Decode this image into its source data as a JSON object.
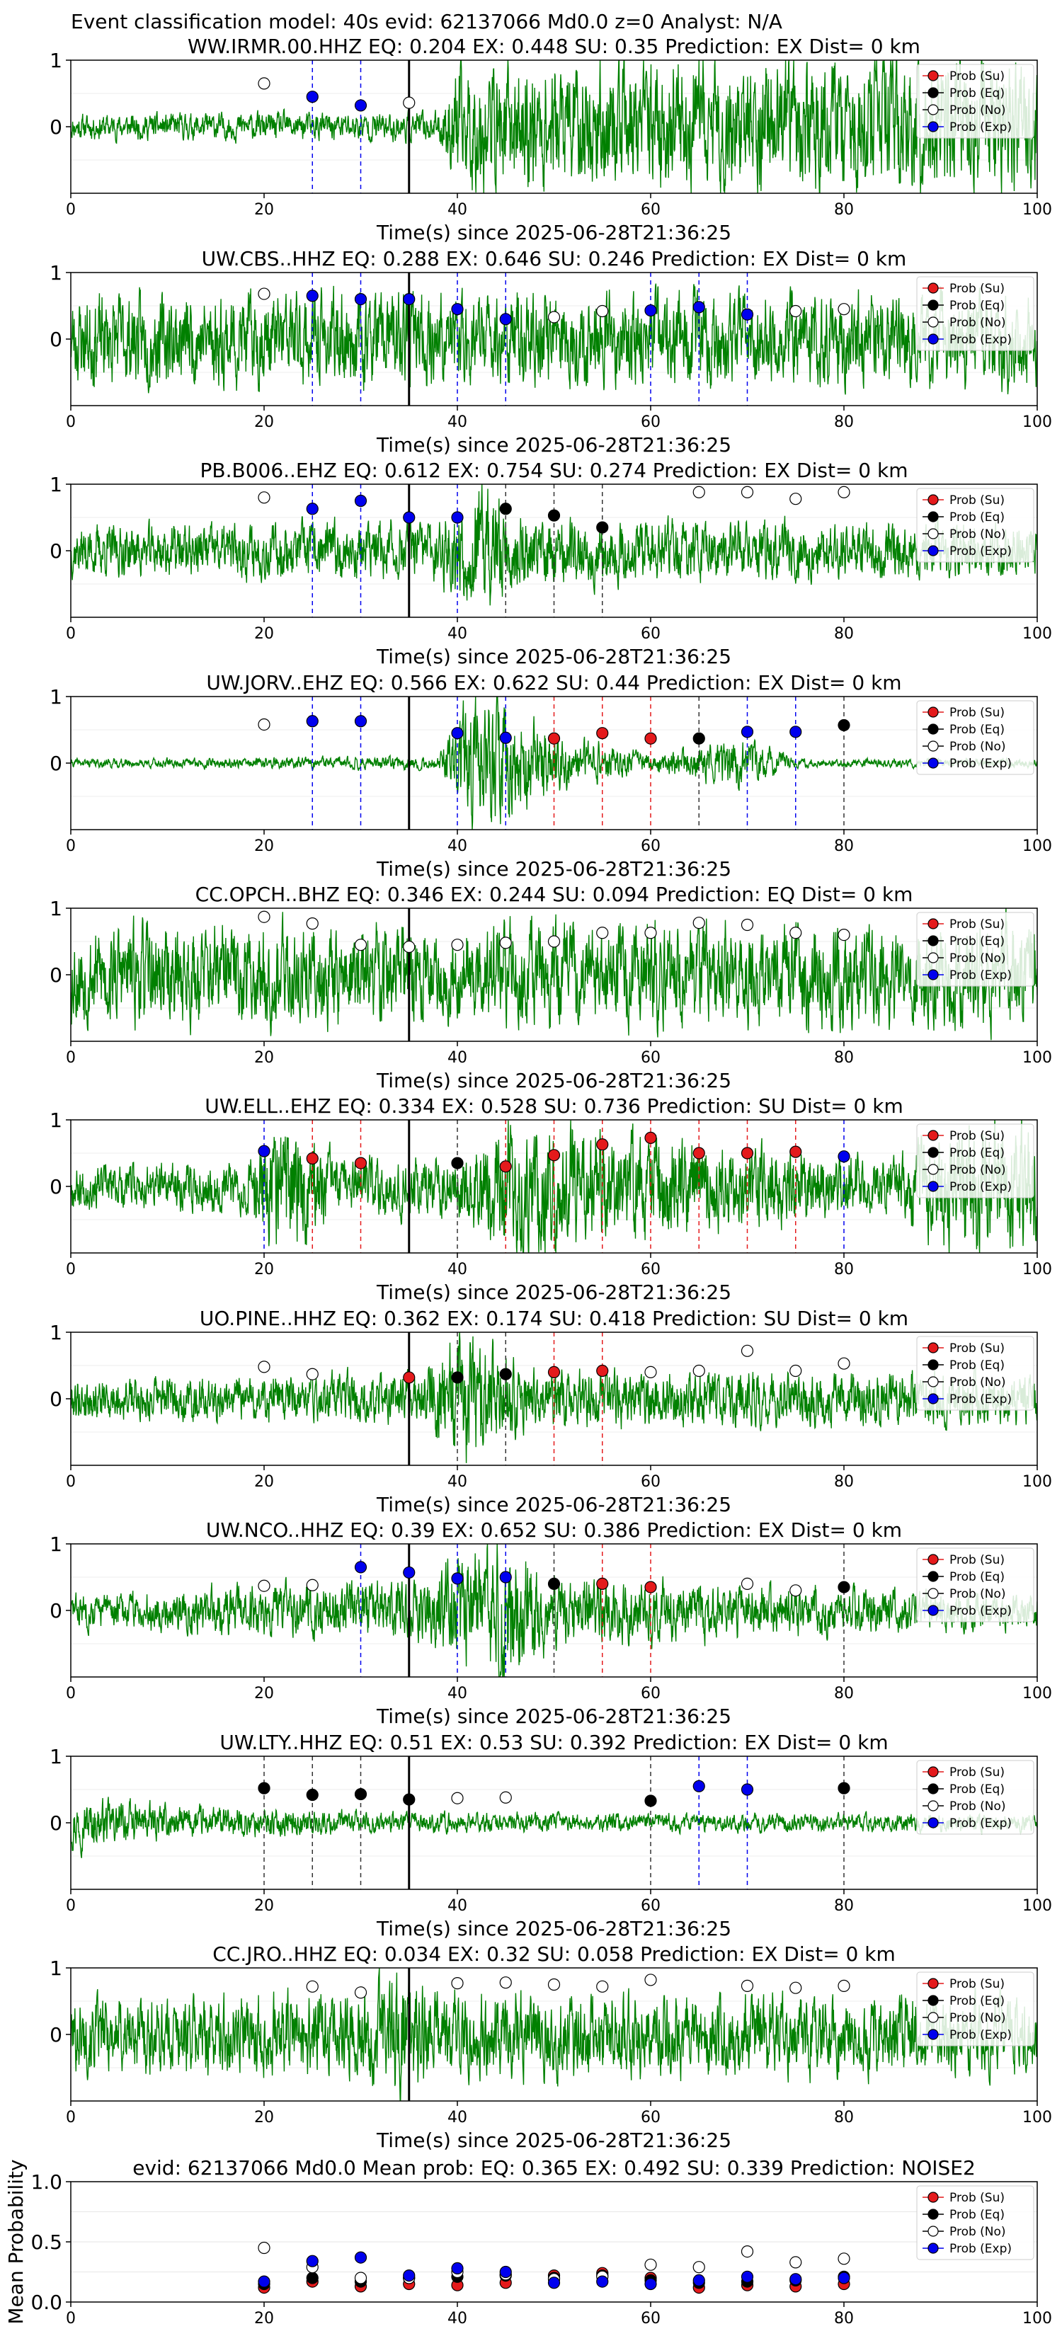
{
  "figure_title": "Event classification model: 40s evid: 62137066 Md0.0 z=0 Analyst: N/A",
  "xlabel": "Time(s) since 2025-06-28T21:36:25",
  "colors": {
    "trace": "#008000",
    "su": "#e41a1c",
    "eq": "#000000",
    "no": "#ffffff",
    "exp": "#0000ee",
    "vline": "#000000"
  },
  "legend_labels": [
    "Prob (Su)",
    "Prob (Eq)",
    "Prob (No)",
    "Prob (Exp)"
  ],
  "chart_data": [
    {
      "type": "line",
      "title": "WW.IRMR.00.HHZ   EQ: 0.204   EX: 0.448   SU: 0.35   Prediction: EX    Dist= 0 km",
      "xlim": [
        0,
        100
      ],
      "ylim": [
        -1,
        1
      ],
      "xticks": [
        0,
        20,
        40,
        60,
        80,
        100
      ],
      "yticks": [
        0,
        1
      ],
      "pick_time": 35,
      "seed": 11,
      "trace_profile": [
        [
          0,
          0.15
        ],
        [
          38,
          0.18
        ],
        [
          40,
          0.75
        ],
        [
          100,
          0.8
        ]
      ],
      "points": [
        {
          "x": 20,
          "y": 0.65,
          "c": "no"
        },
        {
          "x": 25,
          "y": 0.45,
          "c": "exp"
        },
        {
          "x": 30,
          "y": 0.32,
          "c": "exp"
        },
        {
          "x": 35,
          "y": 0.36,
          "c": "no"
        }
      ],
      "legend": "top-right"
    },
    {
      "type": "line",
      "title": "UW.CBS..HHZ   EQ: 0.288   EX: 0.646   SU: 0.246   Prediction: EX    Dist= 0 km",
      "xlim": [
        0,
        100
      ],
      "ylim": [
        -1,
        1
      ],
      "xticks": [
        0,
        20,
        40,
        60,
        80,
        100
      ],
      "yticks": [
        0,
        1
      ],
      "pick_time": 35,
      "seed": 23,
      "trace_profile": [
        [
          0,
          0.55
        ],
        [
          100,
          0.55
        ]
      ],
      "points": [
        {
          "x": 20,
          "y": 0.68,
          "c": "no"
        },
        {
          "x": 25,
          "y": 0.65,
          "c": "exp"
        },
        {
          "x": 30,
          "y": 0.6,
          "c": "exp"
        },
        {
          "x": 35,
          "y": 0.6,
          "c": "exp"
        },
        {
          "x": 40,
          "y": 0.45,
          "c": "exp"
        },
        {
          "x": 45,
          "y": 0.3,
          "c": "exp"
        },
        {
          "x": 50,
          "y": 0.33,
          "c": "no"
        },
        {
          "x": 55,
          "y": 0.42,
          "c": "no"
        },
        {
          "x": 60,
          "y": 0.43,
          "c": "exp"
        },
        {
          "x": 65,
          "y": 0.48,
          "c": "exp"
        },
        {
          "x": 70,
          "y": 0.37,
          "c": "exp"
        },
        {
          "x": 75,
          "y": 0.42,
          "c": "no"
        },
        {
          "x": 80,
          "y": 0.45,
          "c": "no"
        }
      ],
      "legend": "top-right"
    },
    {
      "type": "line",
      "title": "PB.B006..EHZ   EQ: 0.612   EX: 0.754   SU: 0.274   Prediction: EX    Dist= 0 km",
      "xlim": [
        0,
        100
      ],
      "ylim": [
        -1,
        1
      ],
      "xticks": [
        0,
        20,
        40,
        60,
        80,
        100
      ],
      "yticks": [
        0,
        1
      ],
      "pick_time": 35,
      "seed": 37,
      "trace_profile": [
        [
          0,
          0.3
        ],
        [
          38,
          0.35
        ],
        [
          42,
          0.8
        ],
        [
          48,
          0.4
        ],
        [
          100,
          0.3
        ]
      ],
      "points": [
        {
          "x": 20,
          "y": 0.8,
          "c": "no"
        },
        {
          "x": 25,
          "y": 0.63,
          "c": "exp"
        },
        {
          "x": 30,
          "y": 0.75,
          "c": "exp"
        },
        {
          "x": 35,
          "y": 0.5,
          "c": "exp"
        },
        {
          "x": 40,
          "y": 0.5,
          "c": "exp"
        },
        {
          "x": 45,
          "y": 0.63,
          "c": "eq"
        },
        {
          "x": 50,
          "y": 0.53,
          "c": "eq"
        },
        {
          "x": 55,
          "y": 0.35,
          "c": "eq"
        },
        {
          "x": 65,
          "y": 0.88,
          "c": "no"
        },
        {
          "x": 70,
          "y": 0.88,
          "c": "no"
        },
        {
          "x": 75,
          "y": 0.78,
          "c": "no"
        },
        {
          "x": 80,
          "y": 0.88,
          "c": "no"
        }
      ],
      "legend": "top-right"
    },
    {
      "type": "line",
      "title": "UW.JORV..EHZ   EQ: 0.566   EX: 0.622   SU: 0.44   Prediction: EX    Dist= 0 km",
      "xlim": [
        0,
        100
      ],
      "ylim": [
        -1,
        1
      ],
      "xticks": [
        0,
        20,
        40,
        60,
        80,
        100
      ],
      "yticks": [
        0,
        1
      ],
      "pick_time": 35,
      "seed": 41,
      "trace_profile": [
        [
          0,
          0.05
        ],
        [
          38,
          0.08
        ],
        [
          42,
          0.9
        ],
        [
          50,
          0.35
        ],
        [
          60,
          0.1
        ],
        [
          70,
          0.3
        ],
        [
          75,
          0.05
        ],
        [
          100,
          0.05
        ]
      ],
      "points": [
        {
          "x": 20,
          "y": 0.58,
          "c": "no"
        },
        {
          "x": 25,
          "y": 0.63,
          "c": "exp"
        },
        {
          "x": 30,
          "y": 0.63,
          "c": "exp"
        },
        {
          "x": 40,
          "y": 0.45,
          "c": "exp"
        },
        {
          "x": 45,
          "y": 0.38,
          "c": "exp"
        },
        {
          "x": 50,
          "y": 0.37,
          "c": "su"
        },
        {
          "x": 55,
          "y": 0.45,
          "c": "su"
        },
        {
          "x": 60,
          "y": 0.37,
          "c": "su"
        },
        {
          "x": 65,
          "y": 0.37,
          "c": "eq"
        },
        {
          "x": 70,
          "y": 0.47,
          "c": "exp"
        },
        {
          "x": 75,
          "y": 0.47,
          "c": "exp"
        },
        {
          "x": 80,
          "y": 0.57,
          "c": "eq"
        }
      ],
      "legend": "top-right"
    },
    {
      "type": "line",
      "title": "CC.OPCH..BHZ   EQ: 0.346   EX: 0.244   SU: 0.094   Prediction: EQ    Dist= 0 km",
      "xlim": [
        0,
        100
      ],
      "ylim": [
        -1,
        1
      ],
      "xticks": [
        0,
        20,
        40,
        60,
        80,
        100
      ],
      "yticks": [
        0,
        1
      ],
      "pick_time": 35,
      "seed": 53,
      "trace_profile": [
        [
          0,
          0.6
        ],
        [
          100,
          0.6
        ]
      ],
      "points": [
        {
          "x": 20,
          "y": 0.87,
          "c": "no"
        },
        {
          "x": 25,
          "y": 0.77,
          "c": "no"
        },
        {
          "x": 30,
          "y": 0.45,
          "c": "no"
        },
        {
          "x": 35,
          "y": 0.42,
          "c": "no"
        },
        {
          "x": 40,
          "y": 0.45,
          "c": "no"
        },
        {
          "x": 45,
          "y": 0.48,
          "c": "no"
        },
        {
          "x": 50,
          "y": 0.5,
          "c": "no"
        },
        {
          "x": 55,
          "y": 0.63,
          "c": "no"
        },
        {
          "x": 60,
          "y": 0.63,
          "c": "no"
        },
        {
          "x": 65,
          "y": 0.78,
          "c": "no"
        },
        {
          "x": 70,
          "y": 0.75,
          "c": "no"
        },
        {
          "x": 75,
          "y": 0.63,
          "c": "no"
        },
        {
          "x": 80,
          "y": 0.6,
          "c": "no"
        }
      ],
      "legend": "top-right"
    },
    {
      "type": "line",
      "title": "UW.ELL..EHZ   EQ: 0.334   EX: 0.528   SU: 0.736   Prediction: SU    Dist= 0 km",
      "xlim": [
        0,
        100
      ],
      "ylim": [
        -1,
        1
      ],
      "xticks": [
        0,
        20,
        40,
        60,
        80,
        100
      ],
      "yticks": [
        0,
        1
      ],
      "pick_time": 35,
      "seed": 67,
      "trace_profile": [
        [
          0,
          0.25
        ],
        [
          18,
          0.3
        ],
        [
          22,
          0.85
        ],
        [
          28,
          0.3
        ],
        [
          40,
          0.35
        ],
        [
          45,
          0.8
        ],
        [
          70,
          0.5
        ],
        [
          85,
          0.3
        ],
        [
          92,
          0.85
        ],
        [
          100,
          0.7
        ]
      ],
      "points": [
        {
          "x": 20,
          "y": 0.53,
          "c": "exp"
        },
        {
          "x": 25,
          "y": 0.42,
          "c": "su"
        },
        {
          "x": 30,
          "y": 0.35,
          "c": "su"
        },
        {
          "x": 40,
          "y": 0.35,
          "c": "eq"
        },
        {
          "x": 45,
          "y": 0.3,
          "c": "su"
        },
        {
          "x": 50,
          "y": 0.47,
          "c": "su"
        },
        {
          "x": 55,
          "y": 0.63,
          "c": "su"
        },
        {
          "x": 60,
          "y": 0.73,
          "c": "su"
        },
        {
          "x": 65,
          "y": 0.5,
          "c": "su"
        },
        {
          "x": 70,
          "y": 0.5,
          "c": "su"
        },
        {
          "x": 75,
          "y": 0.52,
          "c": "su"
        },
        {
          "x": 80,
          "y": 0.45,
          "c": "exp"
        }
      ],
      "legend": "top-right"
    },
    {
      "type": "line",
      "title": "UO.PINE..HHZ   EQ: 0.362   EX: 0.174   SU: 0.418   Prediction: SU    Dist= 0 km",
      "xlim": [
        0,
        100
      ],
      "ylim": [
        -1,
        1
      ],
      "xticks": [
        0,
        20,
        40,
        60,
        80,
        100
      ],
      "yticks": [
        0,
        1
      ],
      "pick_time": 35,
      "seed": 79,
      "trace_profile": [
        [
          0,
          0.25
        ],
        [
          36,
          0.3
        ],
        [
          40,
          0.8
        ],
        [
          48,
          0.35
        ],
        [
          100,
          0.3
        ]
      ],
      "points": [
        {
          "x": 20,
          "y": 0.48,
          "c": "no"
        },
        {
          "x": 25,
          "y": 0.37,
          "c": "no"
        },
        {
          "x": 35,
          "y": 0.32,
          "c": "su"
        },
        {
          "x": 40,
          "y": 0.32,
          "c": "eq"
        },
        {
          "x": 45,
          "y": 0.37,
          "c": "eq"
        },
        {
          "x": 50,
          "y": 0.4,
          "c": "su"
        },
        {
          "x": 55,
          "y": 0.42,
          "c": "su"
        },
        {
          "x": 60,
          "y": 0.4,
          "c": "no"
        },
        {
          "x": 65,
          "y": 0.42,
          "c": "no"
        },
        {
          "x": 70,
          "y": 0.72,
          "c": "no"
        },
        {
          "x": 75,
          "y": 0.42,
          "c": "no"
        },
        {
          "x": 80,
          "y": 0.53,
          "c": "no"
        }
      ],
      "legend": "top-right"
    },
    {
      "type": "line",
      "title": "UW.NCO..HHZ   EQ: 0.39   EX: 0.652   SU: 0.386   Prediction: EX    Dist= 0 km",
      "xlim": [
        0,
        100
      ],
      "ylim": [
        -1,
        1
      ],
      "xticks": [
        0,
        20,
        40,
        60,
        80,
        100
      ],
      "yticks": [
        0,
        1
      ],
      "pick_time": 35,
      "seed": 83,
      "trace_profile": [
        [
          0,
          0.2
        ],
        [
          20,
          0.3
        ],
        [
          35,
          0.35
        ],
        [
          45,
          0.9
        ],
        [
          50,
          0.4
        ],
        [
          100,
          0.2
        ]
      ],
      "points": [
        {
          "x": 20,
          "y": 0.37,
          "c": "no"
        },
        {
          "x": 25,
          "y": 0.38,
          "c": "no"
        },
        {
          "x": 30,
          "y": 0.65,
          "c": "exp"
        },
        {
          "x": 35,
          "y": 0.57,
          "c": "exp"
        },
        {
          "x": 40,
          "y": 0.48,
          "c": "exp"
        },
        {
          "x": 45,
          "y": 0.5,
          "c": "exp"
        },
        {
          "x": 50,
          "y": 0.4,
          "c": "eq"
        },
        {
          "x": 55,
          "y": 0.4,
          "c": "su"
        },
        {
          "x": 60,
          "y": 0.35,
          "c": "su"
        },
        {
          "x": 70,
          "y": 0.4,
          "c": "no"
        },
        {
          "x": 75,
          "y": 0.3,
          "c": "no"
        },
        {
          "x": 80,
          "y": 0.35,
          "c": "eq"
        }
      ],
      "legend": "top-right"
    },
    {
      "type": "line",
      "title": "UW.LTY..HHZ   EQ: 0.51   EX: 0.53   SU: 0.392   Prediction: EX    Dist= 0 km",
      "xlim": [
        0,
        100
      ],
      "ylim": [
        -1,
        1
      ],
      "xticks": [
        0,
        20,
        40,
        60,
        80,
        100
      ],
      "yticks": [
        0,
        1
      ],
      "pick_time": 35,
      "seed": 97,
      "trace_profile": [
        [
          0,
          0.3
        ],
        [
          10,
          0.2
        ],
        [
          35,
          0.12
        ],
        [
          100,
          0.1
        ]
      ],
      "points": [
        {
          "x": 20,
          "y": 0.52,
          "c": "eq"
        },
        {
          "x": 25,
          "y": 0.42,
          "c": "eq"
        },
        {
          "x": 30,
          "y": 0.43,
          "c": "eq"
        },
        {
          "x": 35,
          "y": 0.35,
          "c": "eq"
        },
        {
          "x": 40,
          "y": 0.37,
          "c": "no"
        },
        {
          "x": 45,
          "y": 0.38,
          "c": "no"
        },
        {
          "x": 60,
          "y": 0.33,
          "c": "eq"
        },
        {
          "x": 65,
          "y": 0.55,
          "c": "exp"
        },
        {
          "x": 70,
          "y": 0.5,
          "c": "exp"
        },
        {
          "x": 80,
          "y": 0.52,
          "c": "eq"
        }
      ],
      "legend": "top-right"
    },
    {
      "type": "line",
      "title": "CC.JRO..HHZ   EQ: 0.034   EX: 0.32   SU: 0.058   Prediction: EX    Dist= 0 km",
      "xlim": [
        0,
        100
      ],
      "ylim": [
        -1,
        1
      ],
      "xticks": [
        0,
        20,
        40,
        60,
        80,
        100
      ],
      "yticks": [
        0,
        1
      ],
      "pick_time": 35,
      "seed": 101,
      "trace_profile": [
        [
          0,
          0.45
        ],
        [
          30,
          0.5
        ],
        [
          34,
          0.85
        ],
        [
          38,
          0.5
        ],
        [
          100,
          0.45
        ]
      ],
      "points": [
        {
          "x": 25,
          "y": 0.72,
          "c": "no"
        },
        {
          "x": 30,
          "y": 0.63,
          "c": "no"
        },
        {
          "x": 40,
          "y": 0.77,
          "c": "no"
        },
        {
          "x": 45,
          "y": 0.78,
          "c": "no"
        },
        {
          "x": 50,
          "y": 0.75,
          "c": "no"
        },
        {
          "x": 55,
          "y": 0.72,
          "c": "no"
        },
        {
          "x": 60,
          "y": 0.82,
          "c": "no"
        },
        {
          "x": 70,
          "y": 0.73,
          "c": "no"
        },
        {
          "x": 75,
          "y": 0.7,
          "c": "no"
        },
        {
          "x": 80,
          "y": 0.73,
          "c": "no"
        }
      ],
      "legend": "top-right"
    },
    {
      "type": "scatter",
      "title": "evid: 62137066   Md0.0   Mean prob:   EQ: 0.365   EX: 0.492   SU: 0.339   Prediction: NOISE2",
      "ylabel": "Mean Probability",
      "xlim": [
        0,
        100
      ],
      "ylim": [
        0,
        1
      ],
      "xticks": [
        0,
        20,
        40,
        60,
        80,
        100
      ],
      "yticks": [
        0.0,
        0.5,
        1.0
      ],
      "ytick_labels": [
        "0.0",
        "0.5",
        "1.0"
      ],
      "series": [
        {
          "name": "Prob (Su)",
          "c": "su",
          "x": [
            20,
            25,
            30,
            35,
            40,
            45,
            50,
            55,
            60,
            65,
            70,
            75,
            80
          ],
          "y": [
            0.12,
            0.17,
            0.13,
            0.15,
            0.14,
            0.16,
            0.22,
            0.24,
            0.2,
            0.12,
            0.14,
            0.13,
            0.15
          ]
        },
        {
          "name": "Prob (Eq)",
          "c": "eq",
          "x": [
            20,
            25,
            30,
            35,
            40,
            45,
            50,
            55,
            60,
            65,
            70,
            75,
            80
          ],
          "y": [
            0.15,
            0.2,
            0.17,
            0.2,
            0.21,
            0.22,
            0.2,
            0.22,
            0.18,
            0.16,
            0.17,
            0.18,
            0.21
          ]
        },
        {
          "name": "Prob (No)",
          "c": "no",
          "x": [
            20,
            25,
            30,
            35,
            40,
            45,
            50,
            55,
            60,
            65,
            70,
            75,
            80
          ],
          "y": [
            0.45,
            0.29,
            0.2,
            0.2,
            0.25,
            0.23,
            0.19,
            0.21,
            0.31,
            0.29,
            0.42,
            0.33,
            0.36
          ]
        },
        {
          "name": "Prob (Exp)",
          "c": "exp",
          "x": [
            20,
            25,
            30,
            35,
            40,
            45,
            50,
            55,
            60,
            65,
            70,
            75,
            80
          ],
          "y": [
            0.17,
            0.34,
            0.37,
            0.22,
            0.28,
            0.25,
            0.16,
            0.17,
            0.15,
            0.18,
            0.21,
            0.19,
            0.2
          ]
        }
      ],
      "legend": "top-right"
    }
  ]
}
